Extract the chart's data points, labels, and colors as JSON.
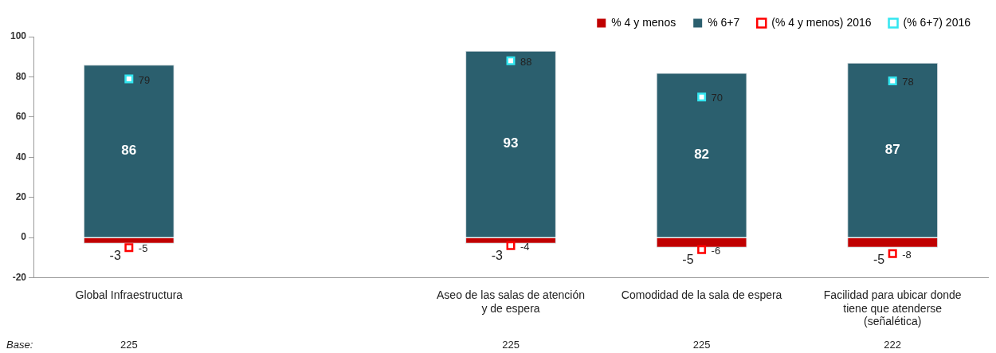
{
  "chart_data": {
    "type": "bar",
    "stacked": true,
    "categories": [
      "Global Infraestructura",
      null,
      "Aseo de las salas de atención y de espera",
      "Comodidad de la sala de espera",
      "Facilidad para ubicar donde tiene que atenderse (señalética)"
    ],
    "series": [
      {
        "name": "% 4 y menos",
        "color": "#c00000",
        "values": [
          -3,
          null,
          -3,
          -5,
          -5
        ]
      },
      {
        "name": "% 6+7",
        "color": "#2b5f6e",
        "values": [
          86,
          null,
          93,
          82,
          87
        ]
      },
      {
        "name": "(% 4 y menos) 2016",
        "type": "scatter",
        "color": "#ff0000",
        "values": [
          -5,
          null,
          -4,
          -6,
          -8
        ]
      },
      {
        "name": "(% 6+7) 2016",
        "type": "scatter",
        "color": "#33e6f0",
        "values": [
          79,
          null,
          88,
          70,
          78
        ]
      }
    ],
    "ylim": [
      -20,
      100
    ],
    "yticks": [
      -20,
      0,
      20,
      40,
      60,
      80,
      100
    ],
    "grid": false,
    "legend": "top right",
    "marker": "square",
    "data_labels": true,
    "annotations": [
      "Base:",
      "225",
      "225",
      "225",
      "222"
    ]
  }
}
